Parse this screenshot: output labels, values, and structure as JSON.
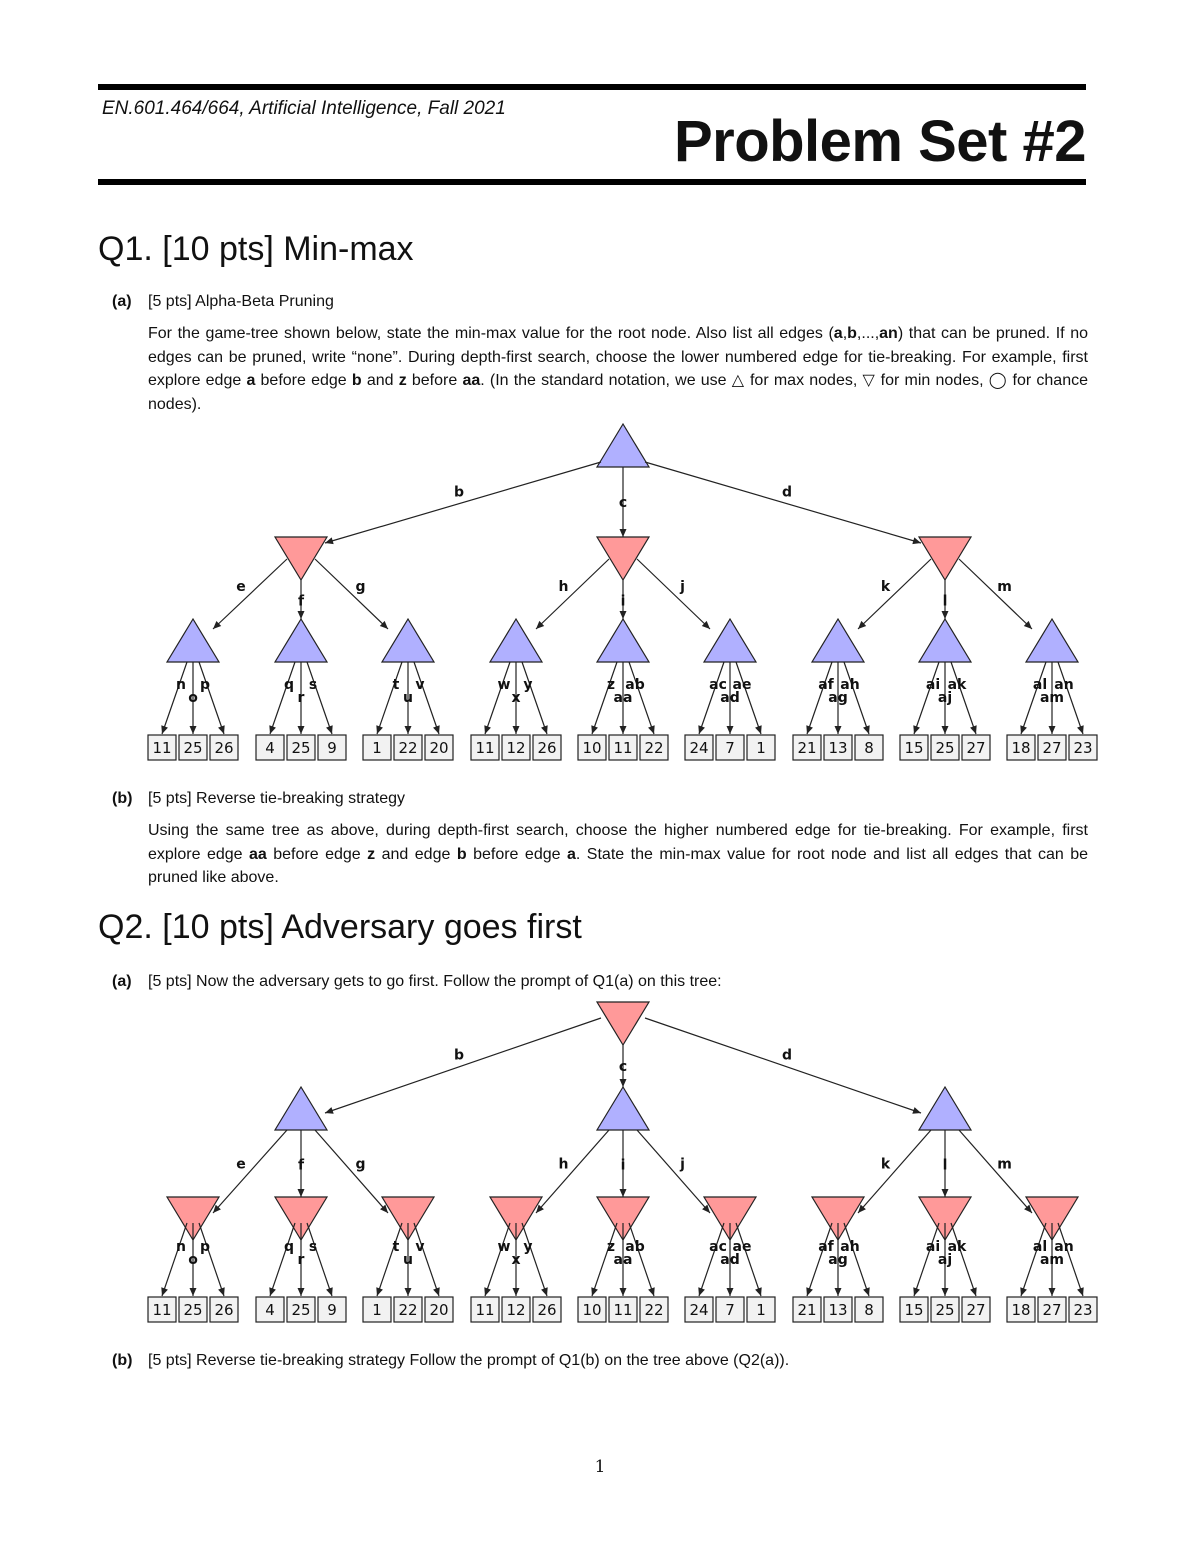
{
  "header": {
    "course": "EN.601.464/664, Artificial Intelligence, Fall 2021",
    "title": "Problem Set #2"
  },
  "q1": {
    "heading": "Q1. [10 pts] Min-max",
    "a": {
      "label": "(a)",
      "title": "[5 pts] Alpha-Beta Pruning",
      "text_1": "For the game-tree shown below, state the min-max value for the root node. Also list all edges (",
      "b1": "a",
      "t2": ",",
      "b2": "b",
      "t3": ",...,",
      "b3": "an",
      "t4": ") that can be pruned. If no edges can be pruned, write “none”. During depth-first search, choose the lower numbered edge for tie-breaking. For example, first explore edge ",
      "b4": "a",
      "t5": " before edge ",
      "b5": "b",
      "t6": " and ",
      "b6": "z",
      "t7": " before ",
      "b7": "aa",
      "t8": ". (In the standard notation, we use △ for max nodes, ▽ for min nodes, ◯ for chance nodes)."
    },
    "b": {
      "label": "(b)",
      "title": "[5 pts] Reverse tie-breaking strategy",
      "t1": "Using the same tree as above, during depth-first search, choose the higher numbered edge for tie-breaking. For example, first explore edge ",
      "b1": "aa",
      "t2": " before edge ",
      "b2": "z",
      "t3": " and edge ",
      "b3": "b",
      "t4": " before edge ",
      "b4": "a",
      "t5": ". State the min-max value for root node and list all edges that can be pruned like above."
    }
  },
  "q2": {
    "heading": "Q2. [10 pts] Adversary goes first",
    "a": {
      "label": "(a)",
      "title": "[5 pts] Now the adversary gets to go first. Follow the prompt of Q1(a) on this tree:"
    },
    "b": {
      "label": "(b)",
      "title": "[5 pts] Reverse tie-breaking strategy Follow the prompt of Q1(b) on the tree above (Q2(a))."
    }
  },
  "colors": {
    "max_node": "#b0b0ff",
    "min_node": "#ff9999",
    "leaf_fill": "#f2f2f2",
    "stroke": "#222222"
  },
  "tree": {
    "level1_edges": [
      "b",
      "c",
      "d"
    ],
    "level2_edges": [
      "e",
      "f",
      "g",
      "h",
      "i",
      "j",
      "k",
      "l",
      "m"
    ],
    "leaf_edges": [
      "n",
      "o",
      "p",
      "q",
      "r",
      "s",
      "t",
      "u",
      "v",
      "w",
      "x",
      "y",
      "z",
      "aa",
      "ab",
      "ac",
      "ad",
      "ae",
      "af",
      "ag",
      "ah",
      "ai",
      "aj",
      "ak",
      "al",
      "am",
      "an"
    ],
    "leaf_values": [
      11,
      25,
      26,
      4,
      25,
      9,
      1,
      22,
      20,
      11,
      12,
      26,
      10,
      11,
      22,
      24,
      7,
      1,
      21,
      13,
      8,
      15,
      25,
      27,
      18,
      27,
      23
    ]
  },
  "page_number": "1"
}
